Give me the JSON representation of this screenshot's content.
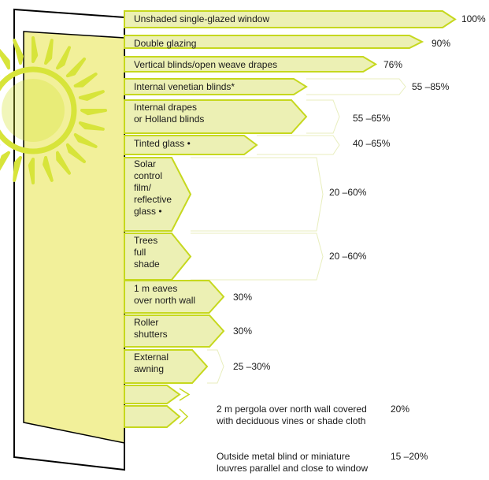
{
  "colors": {
    "bar_fill": "#ecf0b4",
    "bar_edge": "#c6d81e",
    "window_glass": "#f2f09a",
    "sun": "#d7e43a",
    "frame": "#000000"
  },
  "icons": [
    "sun-icon",
    "window-frame-icon"
  ],
  "chart_data": {
    "type": "bar",
    "orientation": "horizontal",
    "title": "",
    "xlabel": "",
    "ylabel": "",
    "unit": "%",
    "categories": [
      "Unshaded single-glazed window",
      "Double glazing",
      "Vertical blinds/open weave drapes",
      "Internal venetian blinds*",
      "Internal drapes\nor Holland blinds",
      "Tinted glass  •",
      "Solar\ncontrol\nfilm/\nreflective\nglass  •",
      "Trees\nfull\nshade",
      "1 m eaves\nover north wall",
      "Roller\nshutters",
      "External\nawning",
      "2 m pergola over north wall covered\nwith deciduous vines or shade cloth",
      "Outside metal blind or miniature\nlouvres parallel and close to window"
    ],
    "value_labels": [
      "100%",
      "90%",
      "76%",
      "55 –85%",
      "55 –65%",
      "40 –65%",
      "20 –60%",
      "20 –60%",
      "30%",
      "30%",
      "25 –30%",
      "20%",
      "15 –20%"
    ],
    "values": [
      100,
      90,
      76,
      55,
      55,
      40,
      20,
      20,
      30,
      30,
      25,
      20,
      15
    ],
    "ranges": [
      [
        100,
        100
      ],
      [
        90,
        90
      ],
      [
        76,
        76
      ],
      [
        55,
        85
      ],
      [
        55,
        65
      ],
      [
        40,
        65
      ],
      [
        20,
        60
      ],
      [
        20,
        60
      ],
      [
        30,
        30
      ],
      [
        30,
        30
      ],
      [
        25,
        30
      ],
      [
        20,
        20
      ],
      [
        15,
        20
      ]
    ],
    "xlim": [
      0,
      100
    ],
    "grid": false,
    "legend": "none"
  }
}
